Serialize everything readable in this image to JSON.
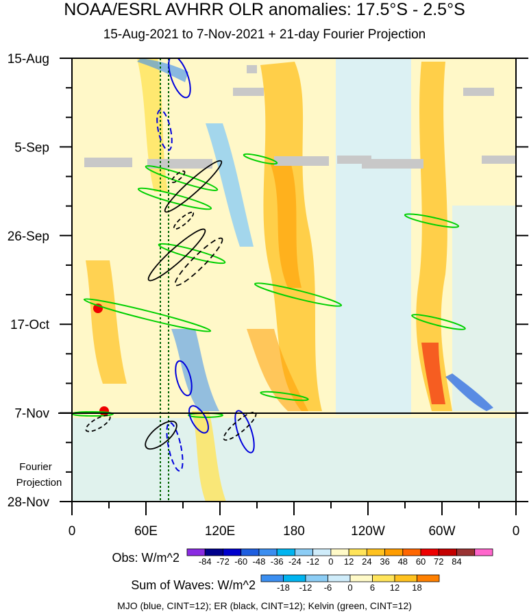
{
  "title": "NOAA/ESRL AVHRR OLR anomalies: 17.5°S - 2.5°S",
  "subtitle": "15-Aug-2021 to 7-Nov-2021 + 21-day Fourier Projection",
  "chart_data": {
    "type": "heatmap",
    "x_ticks": [
      "0",
      "60E",
      "120E",
      "180",
      "120W",
      "60W",
      "0"
    ],
    "y_ticks": [
      "15-Aug",
      "5-Sep",
      "26-Sep",
      "17-Oct",
      "7-Nov",
      "28-Nov"
    ],
    "projection_label_line1": "Fourier",
    "projection_label_line2": "Projection",
    "obs_legend": {
      "label": "Obs: W/m^2",
      "ticks": [
        "-84",
        "-72",
        "-60",
        "-48",
        "-36",
        "-24",
        "-12",
        "0",
        "12",
        "24",
        "36",
        "48",
        "60",
        "72",
        "84"
      ],
      "colors": [
        "#8a2be2",
        "#00008b",
        "#0000cd",
        "#1f5fe0",
        "#3b8ef0",
        "#00b4f0",
        "#8ccdf5",
        "#cfecfa",
        "#fffac8",
        "#ffe45a",
        "#ffc21f",
        "#ff9d00",
        "#ff6600",
        "#ee0000",
        "#c40000",
        "#993333",
        "#ff66cc"
      ]
    },
    "wave_legend": {
      "label": "Sum of Waves: W/m^2",
      "ticks": [
        "-18",
        "-12",
        "-6",
        "0",
        "6",
        "12",
        "18"
      ],
      "colors": [
        "#3b8ef0",
        "#00b4f0",
        "#8ccdf5",
        "#cfecfa",
        "#fffac8",
        "#ffe45a",
        "#ffc21f",
        "#ff8000"
      ]
    },
    "caption": "MJO (blue, CINT=12); ER (black, CINT=12); Kelvin (green, CINT=12)"
  }
}
